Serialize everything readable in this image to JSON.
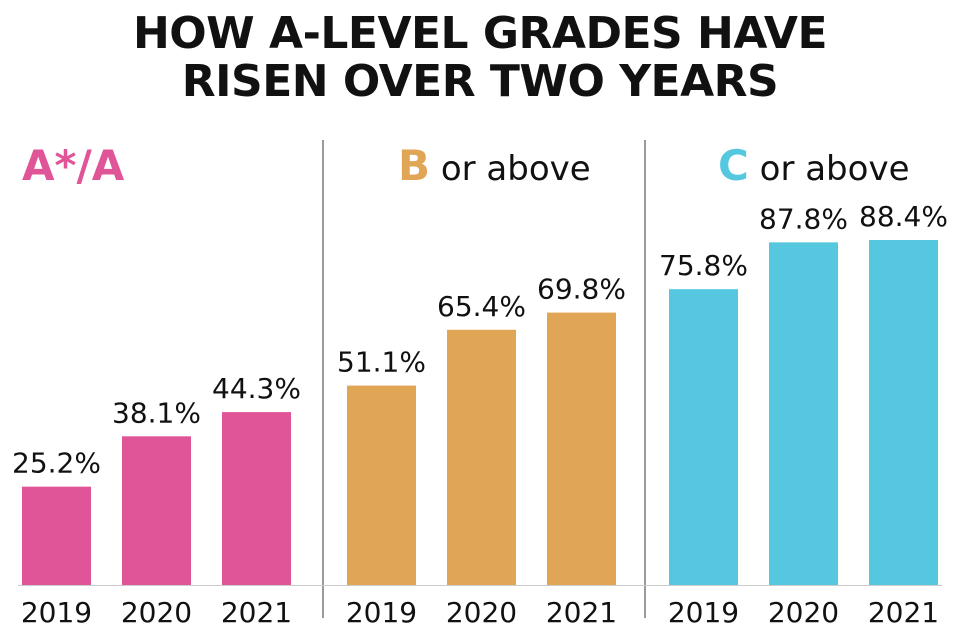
{
  "title_lines": [
    "HOW A-LEVEL GRADES HAVE",
    "RISEN OVER TWO YEARS"
  ],
  "chart_data": [
    {
      "type": "bar",
      "title_grade": "A*/A",
      "title_rest": "",
      "categories": [
        "2019",
        "2020",
        "2021"
      ],
      "values": [
        25.2,
        38.1,
        44.3
      ],
      "data_labels": [
        "25.2%",
        "38.1%",
        "44.3%"
      ],
      "color": "#e05597",
      "grade_color": "#e05597"
    },
    {
      "type": "bar",
      "title_grade": "B",
      "title_rest": " or above",
      "categories": [
        "2019",
        "2020",
        "2021"
      ],
      "values": [
        51.1,
        65.4,
        69.8
      ],
      "data_labels": [
        "51.1%",
        "65.4%",
        "69.8%"
      ],
      "color": "#e0a655",
      "grade_color": "#e0a655"
    },
    {
      "type": "bar",
      "title_grade": "C",
      "title_rest": " or above",
      "categories": [
        "2019",
        "2020",
        "2021"
      ],
      "values": [
        75.8,
        87.8,
        88.4
      ],
      "data_labels": [
        "75.8%",
        "87.8%",
        "88.4%"
      ],
      "color": "#55c8e0",
      "grade_color": "#55c8e0"
    }
  ]
}
